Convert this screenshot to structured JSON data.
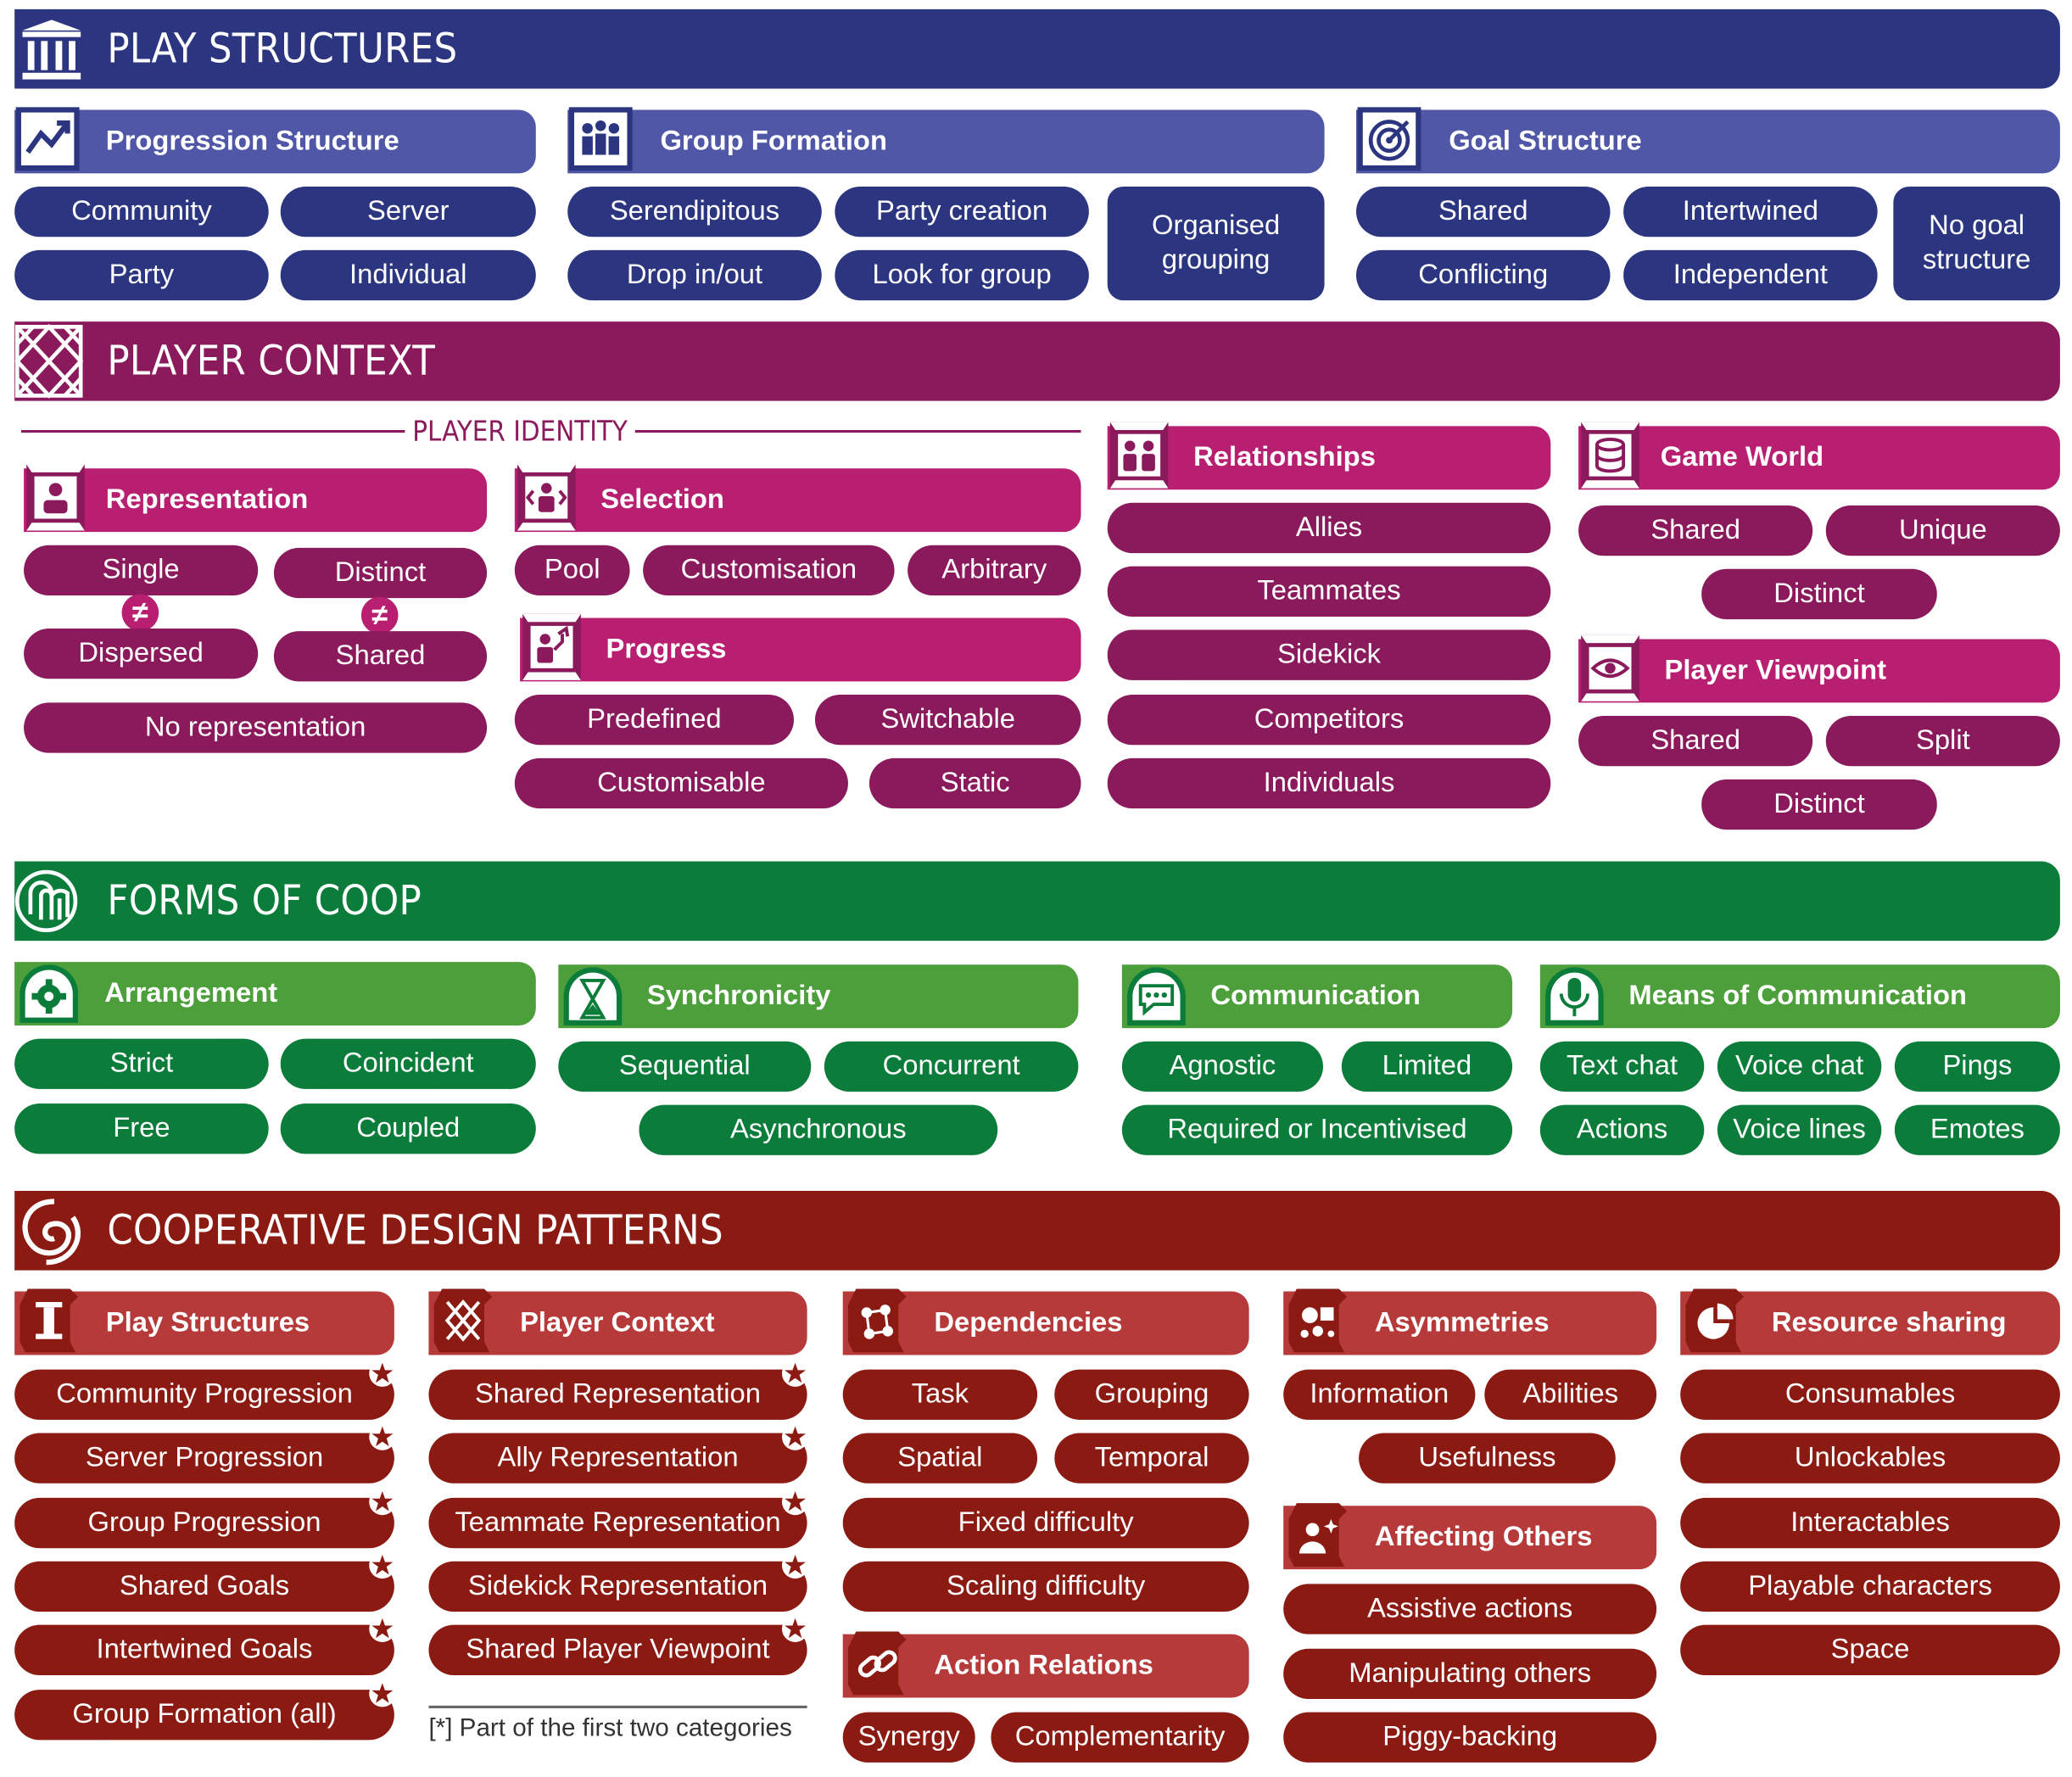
{
  "colors": {
    "play_band": "#2c3580",
    "play_cat": "#4f57a6",
    "play_pill": "#2c3580",
    "ctx_band": "#8b1a5c",
    "ctx_cat": "#b81f70",
    "ctx_pill": "#8b1a5c",
    "coop_band": "#0b7c3a",
    "coop_cat": "#4c9f3b",
    "coop_pill": "#0b7c3a",
    "pat_band": "#8b1a13",
    "pat_cat": "#b63a3a",
    "pat_pill": "#8b1a13"
  },
  "play_structures": {
    "title": "PLAY STRUCTURES",
    "progression": {
      "title": "Progression Structure",
      "items": [
        "Community",
        "Server",
        "Party",
        "Individual"
      ]
    },
    "group": {
      "title": "Group Formation",
      "items": [
        "Serendipitous",
        "Party creation",
        "Drop in/out",
        "Look for group",
        "Organised grouping"
      ]
    },
    "goal": {
      "title": "Goal Structure",
      "items": [
        "Shared",
        "Intertwined",
        "Conflicting",
        "Independent",
        "No goal structure"
      ]
    }
  },
  "player_context": {
    "title": "PLAYER CONTEXT",
    "identity_label": "PLAYER IDENTITY",
    "representation": {
      "title": "Representation",
      "items": [
        "Single",
        "Distinct",
        "Dispersed",
        "Shared",
        "No representation"
      ],
      "neq": "≠"
    },
    "selection": {
      "title": "Selection",
      "items": [
        "Pool",
        "Customisation",
        "Arbitrary"
      ]
    },
    "progress": {
      "title": "Progress",
      "items": [
        "Predefined",
        "Switchable",
        "Customisable",
        "Static"
      ]
    },
    "relationships": {
      "title": "Relationships",
      "items": [
        "Allies",
        "Teammates",
        "Sidekick",
        "Competitors",
        "Individuals"
      ]
    },
    "game_world": {
      "title": "Game World",
      "items": [
        "Shared",
        "Unique",
        "Distinct"
      ]
    },
    "viewpoint": {
      "title": "Player Viewpoint",
      "items": [
        "Shared",
        "Split",
        "Distinct"
      ]
    }
  },
  "forms_of_coop": {
    "title": "FORMS OF COOP",
    "arrangement": {
      "title": "Arrangement",
      "items": [
        "Strict",
        "Coincident",
        "Free",
        "Coupled"
      ]
    },
    "synchronicity": {
      "title": "Synchronicity",
      "items": [
        "Sequential",
        "Concurrent",
        "Asynchronous"
      ]
    },
    "communication": {
      "title": "Communication",
      "items": [
        "Agnostic",
        "Limited",
        "Required or Incentivised"
      ]
    },
    "means": {
      "title": "Means of Communication",
      "items": [
        "Text chat",
        "Voice chat",
        "Pings",
        "Actions",
        "Voice lines",
        "Emotes"
      ]
    }
  },
  "patterns": {
    "title": "COOPERATIVE DESIGN PATTERNS",
    "play_structures": {
      "title": "Play Structures",
      "items": [
        "Community Progression",
        "Server Progression",
        "Group Progression",
        "Shared Goals",
        "Intertwined Goals",
        "Group Formation (all)"
      ]
    },
    "player_context": {
      "title": "Player Context",
      "items": [
        "Shared Representation",
        "Ally Representation",
        "Teammate Representation",
        "Sidekick Representation",
        "Shared Player Viewpoint"
      ]
    },
    "footnote": "[*] Part of the first two categories",
    "dependencies": {
      "title": "Dependencies",
      "items": [
        "Task",
        "Grouping",
        "Spatial",
        "Temporal",
        "Fixed difficulty",
        "Scaling difficulty"
      ]
    },
    "action_relations": {
      "title": "Action Relations",
      "items": [
        "Synergy",
        "Complementarity"
      ]
    },
    "asymmetries": {
      "title": "Asymmetries",
      "items": [
        "Information",
        "Abilities",
        "Usefulness"
      ]
    },
    "affecting": {
      "title": "Affecting Others",
      "items": [
        "Assistive actions",
        "Manipulating others",
        "Piggy-backing"
      ]
    },
    "resource": {
      "title": "Resource sharing",
      "items": [
        "Consumables",
        "Unlockables",
        "Interactables",
        "Playable characters",
        "Space"
      ]
    }
  }
}
